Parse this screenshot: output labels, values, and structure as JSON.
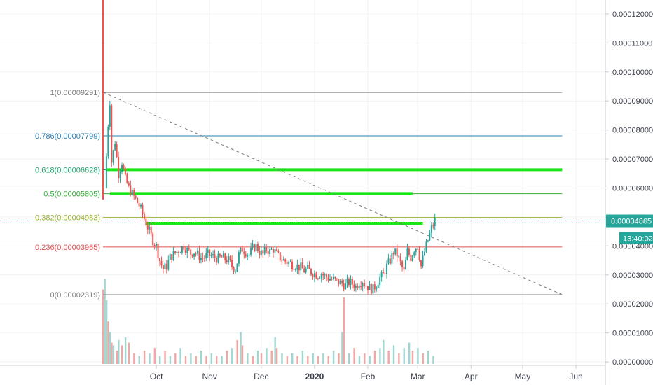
{
  "chart_data": {
    "type": "candlestick",
    "price_axis": {
      "ticks": [
        "0.00012000",
        "0.00011000",
        "0.00010000",
        "0.00009000",
        "0.00008000",
        "0.00007000",
        "0.00006000",
        "0.00005000",
        "0.00004000",
        "0.00003000",
        "0.00002000",
        "0.00001000",
        "0.00000000"
      ],
      "ylim": [
        -7e-07,
        0.0001248
      ]
    },
    "time_axis": {
      "ticks": [
        {
          "label": "Oct",
          "day": 31
        },
        {
          "label": "Nov",
          "day": 62
        },
        {
          "label": "Dec",
          "day": 92
        },
        {
          "label": "2020",
          "day": 123,
          "bold": true
        },
        {
          "label": "Feb",
          "day": 154
        },
        {
          "label": "Mar",
          "day": 183
        },
        {
          "label": "Apr",
          "day": 214
        },
        {
          "label": "May",
          "day": 244
        },
        {
          "label": "Jun",
          "day": 275
        }
      ],
      "xlim": [
        0,
        291
      ]
    },
    "current_price": {
      "label": "0.00004865",
      "value": 4.865e-05,
      "countdown": "13:40:02"
    },
    "fib_levels": [
      {
        "ratio": "1",
        "label": "1(0.00009291)",
        "value": 9.291e-05,
        "color": "#808080"
      },
      {
        "ratio": "0.786",
        "label": "0.786(0.00007799)",
        "value": 7.799e-05,
        "color": "#2a7fb4"
      },
      {
        "ratio": "0.618",
        "label": "0.618(0.00006628)",
        "value": 6.628e-05,
        "color": "#1aa56a"
      },
      {
        "ratio": "0.5",
        "label": "0.5(0.00005805)",
        "value": 5.805e-05,
        "color": "#3daa3d"
      },
      {
        "ratio": "0.382",
        "label": "0.382(0.00004983)",
        "value": 4.983e-05,
        "color": "#9ab52c"
      },
      {
        "ratio": "0.236",
        "label": "0.236(0.00003965)",
        "value": 3.965e-05,
        "color": "#e05050"
      },
      {
        "ratio": "0",
        "label": "0(0.00002319)",
        "value": 2.319e-05,
        "color": "#808080"
      }
    ],
    "fib_extend_to_day": 267,
    "green_zones": [
      {
        "value": 6.63e-05,
        "from_day": 2,
        "to_day": 267
      },
      {
        "value": 5.81e-05,
        "from_day": 4,
        "to_day": 180
      },
      {
        "value": 4.78e-05,
        "from_day": 25,
        "to_day": 186
      }
    ],
    "trend_line": {
      "from": [
        0,
        9.3e-05
      ],
      "to": [
        267,
        2.319e-05
      ]
    },
    "launch_spike": {
      "day": 0,
      "high": 0.00013,
      "low": 5.6e-05
    },
    "price_path": [
      [
        2,
        6e-05
      ],
      [
        4,
        8.2e-05
      ],
      [
        5,
        9e-05
      ],
      [
        6,
        6.9e-05
      ],
      [
        8,
        7.6e-05
      ],
      [
        10,
        6.5e-05
      ],
      [
        12,
        6.9e-05
      ],
      [
        14,
        6.3e-05
      ],
      [
        16,
        6e-05
      ],
      [
        18,
        5.8e-05
      ],
      [
        20,
        5.6e-05
      ],
      [
        22,
        5.4e-05
      ],
      [
        24,
        5.1e-05
      ],
      [
        26,
        4.8e-05
      ],
      [
        28,
        4.5e-05
      ],
      [
        30,
        4.2e-05
      ],
      [
        32,
        4e-05
      ],
      [
        34,
        3.5e-05
      ],
      [
        36,
        3.2e-05
      ],
      [
        38,
        3.3e-05
      ],
      [
        40,
        3.6e-05
      ],
      [
        42,
        3.7e-05
      ],
      [
        44,
        3.8e-05
      ],
      [
        46,
        3.9e-05
      ],
      [
        48,
        4e-05
      ],
      [
        50,
        3.85e-05
      ],
      [
        52,
        3.75e-05
      ],
      [
        54,
        3.8e-05
      ],
      [
        56,
        3.7e-05
      ],
      [
        58,
        3.6e-05
      ],
      [
        60,
        3.6e-05
      ],
      [
        62,
        3.7e-05
      ],
      [
        64,
        3.65e-05
      ],
      [
        66,
        3.6e-05
      ],
      [
        68,
        3.55e-05
      ],
      [
        70,
        3.6e-05
      ],
      [
        72,
        3.55e-05
      ],
      [
        74,
        3.5e-05
      ],
      [
        76,
        3.3e-05
      ],
      [
        78,
        3.2e-05
      ],
      [
        80,
        3.7e-05
      ],
      [
        82,
        3.9e-05
      ],
      [
        84,
        3.8e-05
      ],
      [
        86,
        3.7e-05
      ],
      [
        88,
        3.9e-05
      ],
      [
        90,
        4e-05
      ],
      [
        92,
        3.8e-05
      ],
      [
        94,
        3.7e-05
      ],
      [
        96,
        3.9e-05
      ],
      [
        98,
        3.8e-05
      ],
      [
        100,
        3.9e-05
      ],
      [
        102,
        3.7e-05
      ],
      [
        104,
        3.6e-05
      ],
      [
        106,
        3.5e-05
      ],
      [
        108,
        3.45e-05
      ],
      [
        110,
        3.4e-05
      ],
      [
        112,
        3.35e-05
      ],
      [
        114,
        3.3e-05
      ],
      [
        116,
        3.25e-05
      ],
      [
        118,
        3.15e-05
      ],
      [
        120,
        3.2e-05
      ],
      [
        122,
        3.1e-05
      ],
      [
        124,
        3.05e-05
      ],
      [
        126,
        3e-05
      ],
      [
        128,
        3.05e-05
      ],
      [
        130,
        2.95e-05
      ],
      [
        132,
        2.9e-05
      ],
      [
        134,
        2.85e-05
      ],
      [
        136,
        2.8e-05
      ],
      [
        138,
        2.75e-05
      ],
      [
        140,
        2.7e-05
      ],
      [
        142,
        2.65e-05
      ],
      [
        144,
        2.75e-05
      ],
      [
        146,
        2.7e-05
      ],
      [
        148,
        2.6e-05
      ],
      [
        150,
        2.75e-05
      ],
      [
        152,
        2.8e-05
      ],
      [
        154,
        2.65e-05
      ],
      [
        156,
        2.55e-05
      ],
      [
        158,
        2.5e-05
      ],
      [
        160,
        2.7e-05
      ],
      [
        162,
        2.9e-05
      ],
      [
        164,
        3e-05
      ],
      [
        166,
        3.3e-05
      ],
      [
        168,
        3.5e-05
      ],
      [
        170,
        3.8e-05
      ],
      [
        172,
        3.7e-05
      ],
      [
        174,
        3.4e-05
      ],
      [
        176,
        3.1e-05
      ],
      [
        178,
        3.8e-05
      ],
      [
        180,
        3.6e-05
      ],
      [
        182,
        3.9e-05
      ],
      [
        184,
        4e-05
      ],
      [
        186,
        3.3e-05
      ],
      [
        188,
        3.8e-05
      ],
      [
        190,
        4.2e-05
      ],
      [
        192,
        4.6e-05
      ],
      [
        194,
        4.87e-05
      ]
    ],
    "volume": [
      {
        "day": 0,
        "value": 28,
        "up": false
      },
      {
        "day": 1,
        "value": 32,
        "up": true
      },
      {
        "day": 2,
        "value": 24,
        "up": true
      },
      {
        "day": 3,
        "value": 16,
        "up": false
      },
      {
        "day": 4,
        "value": 12,
        "up": true
      },
      {
        "day": 5,
        "value": 8,
        "up": false
      },
      {
        "day": 6,
        "value": 7,
        "up": true
      },
      {
        "day": 8,
        "value": 5,
        "up": false
      },
      {
        "day": 9,
        "value": 9,
        "up": true
      },
      {
        "day": 11,
        "value": 7,
        "up": false
      },
      {
        "day": 13,
        "value": 10,
        "up": true
      },
      {
        "day": 15,
        "value": 8,
        "up": false
      },
      {
        "day": 18,
        "value": 4,
        "up": false
      },
      {
        "day": 21,
        "value": 3,
        "up": true
      },
      {
        "day": 24,
        "value": 5,
        "up": false
      },
      {
        "day": 27,
        "value": 4,
        "up": true
      },
      {
        "day": 30,
        "value": 6,
        "up": false
      },
      {
        "day": 33,
        "value": 3,
        "up": true
      },
      {
        "day": 36,
        "value": 5,
        "up": false
      },
      {
        "day": 39,
        "value": 3,
        "up": true
      },
      {
        "day": 42,
        "value": 4,
        "up": false
      },
      {
        "day": 45,
        "value": 6,
        "up": true
      },
      {
        "day": 48,
        "value": 3,
        "up": false
      },
      {
        "day": 51,
        "value": 4,
        "up": true
      },
      {
        "day": 54,
        "value": 3,
        "up": false
      },
      {
        "day": 57,
        "value": 5,
        "up": true
      },
      {
        "day": 60,
        "value": 3,
        "up": false
      },
      {
        "day": 63,
        "value": 4,
        "up": true
      },
      {
        "day": 66,
        "value": 3,
        "up": false
      },
      {
        "day": 69,
        "value": 3,
        "up": true
      },
      {
        "day": 72,
        "value": 5,
        "up": false
      },
      {
        "day": 75,
        "value": 6,
        "up": true
      },
      {
        "day": 78,
        "value": 9,
        "up": false
      },
      {
        "day": 80,
        "value": 12,
        "up": true
      },
      {
        "day": 81,
        "value": 7,
        "up": false
      },
      {
        "day": 84,
        "value": 4,
        "up": true
      },
      {
        "day": 87,
        "value": 3,
        "up": false
      },
      {
        "day": 90,
        "value": 5,
        "up": true
      },
      {
        "day": 92,
        "value": 4,
        "up": false
      },
      {
        "day": 95,
        "value": 6,
        "up": true
      },
      {
        "day": 98,
        "value": 5,
        "up": false
      },
      {
        "day": 100,
        "value": 10,
        "up": true
      },
      {
        "day": 101,
        "value": 6,
        "up": false
      },
      {
        "day": 104,
        "value": 4,
        "up": true
      },
      {
        "day": 107,
        "value": 3,
        "up": false
      },
      {
        "day": 110,
        "value": 4,
        "up": true
      },
      {
        "day": 113,
        "value": 3,
        "up": false
      },
      {
        "day": 116,
        "value": 5,
        "up": true
      },
      {
        "day": 119,
        "value": 3,
        "up": false
      },
      {
        "day": 122,
        "value": 4,
        "up": true
      },
      {
        "day": 125,
        "value": 3,
        "up": false
      },
      {
        "day": 128,
        "value": 4,
        "up": true
      },
      {
        "day": 131,
        "value": 3,
        "up": false
      },
      {
        "day": 134,
        "value": 5,
        "up": true
      },
      {
        "day": 137,
        "value": 4,
        "up": false
      },
      {
        "day": 139,
        "value": 12,
        "up": true
      },
      {
        "day": 140,
        "value": 25,
        "up": false
      },
      {
        "day": 143,
        "value": 4,
        "up": true
      },
      {
        "day": 146,
        "value": 6,
        "up": false
      },
      {
        "day": 149,
        "value": 3,
        "up": true
      },
      {
        "day": 152,
        "value": 4,
        "up": false
      },
      {
        "day": 155,
        "value": 3,
        "up": true
      },
      {
        "day": 158,
        "value": 5,
        "up": false
      },
      {
        "day": 161,
        "value": 6,
        "up": true
      },
      {
        "day": 163,
        "value": 9,
        "up": true
      },
      {
        "day": 166,
        "value": 5,
        "up": false
      },
      {
        "day": 169,
        "value": 7,
        "up": true
      },
      {
        "day": 172,
        "value": 4,
        "up": false
      },
      {
        "day": 175,
        "value": 6,
        "up": true
      },
      {
        "day": 178,
        "value": 8,
        "up": true
      },
      {
        "day": 180,
        "value": 5,
        "up": false
      },
      {
        "day": 183,
        "value": 6,
        "up": true
      },
      {
        "day": 186,
        "value": 4,
        "up": false
      },
      {
        "day": 189,
        "value": 5,
        "up": true
      },
      {
        "day": 192,
        "value": 3,
        "up": true
      }
    ]
  }
}
